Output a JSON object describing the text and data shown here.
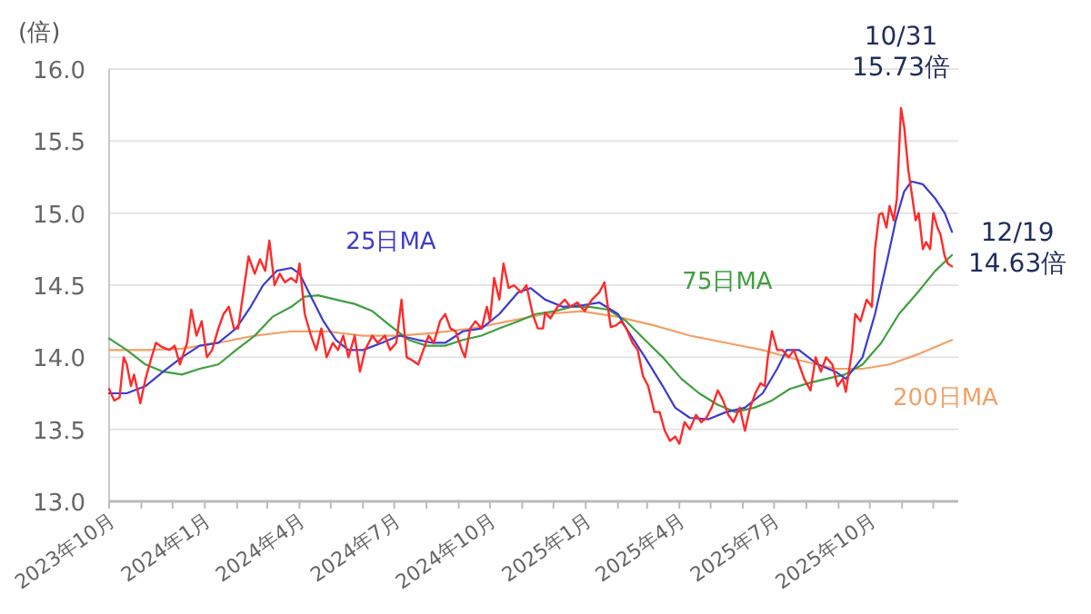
{
  "chart_data": {
    "type": "line",
    "ylabel": "(倍)",
    "xlim": [
      "2023-10-01",
      "2025-12-25"
    ],
    "xticks": [
      {
        "value": "2023-10-01",
        "label": "2023年10月"
      },
      {
        "value": "2023-11-01",
        "label": null
      },
      {
        "value": "2023-12-01",
        "label": null
      },
      {
        "value": "2024-01-01",
        "label": "2024年1月"
      },
      {
        "value": "2024-02-01",
        "label": null
      },
      {
        "value": "2024-03-01",
        "label": null
      },
      {
        "value": "2024-04-01",
        "label": "2024年4月"
      },
      {
        "value": "2024-05-01",
        "label": null
      },
      {
        "value": "2024-06-01",
        "label": null
      },
      {
        "value": "2024-07-01",
        "label": "2024年7月"
      },
      {
        "value": "2024-08-01",
        "label": null
      },
      {
        "value": "2024-09-01",
        "label": null
      },
      {
        "value": "2024-10-01",
        "label": "2024年10月"
      },
      {
        "value": "2024-11-01",
        "label": null
      },
      {
        "value": "2024-12-01",
        "label": null
      },
      {
        "value": "2025-01-01",
        "label": "2025年1月"
      },
      {
        "value": "2025-02-01",
        "label": null
      },
      {
        "value": "2025-03-01",
        "label": null
      },
      {
        "value": "2025-04-01",
        "label": "2025年4月"
      },
      {
        "value": "2025-05-01",
        "label": null
      },
      {
        "value": "2025-06-01",
        "label": null
      },
      {
        "value": "2025-07-01",
        "label": "2025年7月"
      },
      {
        "value": "2025-08-01",
        "label": null
      },
      {
        "value": "2025-09-01",
        "label": null
      },
      {
        "value": "2025-10-01",
        "label": "2025年10月"
      },
      {
        "value": "2025-11-01",
        "label": null
      },
      {
        "value": "2025-12-01",
        "label": null
      }
    ],
    "ylim": [
      13.0,
      16.0
    ],
    "yticks": [
      {
        "value": 13.0,
        "label": "13.0"
      },
      {
        "value": 13.5,
        "label": "13.5"
      },
      {
        "value": 14.0,
        "label": "14.0"
      },
      {
        "value": 14.5,
        "label": "14.5"
      },
      {
        "value": 15.0,
        "label": "15.0"
      },
      {
        "value": 15.5,
        "label": "15.5"
      },
      {
        "value": 16.0,
        "label": "16.0"
      }
    ],
    "grid": "y",
    "legend": false,
    "marker": "none",
    "line_style": "solid",
    "annotations": [
      {
        "text": "10/31\n15.73倍",
        "x": "2025-10-31",
        "y": 15.73
      },
      {
        "text": "12/19\n14.63倍",
        "x": "2025-12-19",
        "y": 14.63
      }
    ],
    "series": [
      {
        "color": "#ff2a2a",
        "x": [
          "2023-10-01",
          "2023-10-06",
          "2023-10-11",
          "2023-10-15",
          "2023-10-18",
          "2023-10-22",
          "2023-10-25",
          "2023-10-31",
          "2023-11-05",
          "2023-11-10",
          "2023-11-15",
          "2023-11-21",
          "2023-11-28",
          "2023-12-03",
          "2023-12-08",
          "2023-12-15",
          "2023-12-19",
          "2023-12-24",
          "2023-12-29",
          "2024-01-03",
          "2024-01-08",
          "2024-01-14",
          "2024-01-19",
          "2024-01-24",
          "2024-01-29",
          "2024-02-02",
          "2024-02-07",
          "2024-02-12",
          "2024-02-18",
          "2024-02-23",
          "2024-02-28",
          "2024-03-03",
          "2024-03-08",
          "2024-03-13",
          "2024-03-18",
          "2024-03-24",
          "2024-03-29",
          "2024-04-01",
          "2024-04-06",
          "2024-04-12",
          "2024-04-17",
          "2024-04-22",
          "2024-04-27",
          "2024-05-03",
          "2024-05-08",
          "2024-05-13",
          "2024-05-18",
          "2024-05-24",
          "2024-05-29",
          "2024-06-03",
          "2024-06-10",
          "2024-06-15",
          "2024-06-22",
          "2024-06-27",
          "2024-07-03",
          "2024-07-08",
          "2024-07-13",
          "2024-07-18",
          "2024-07-24",
          "2024-07-29",
          "2024-08-03",
          "2024-08-08",
          "2024-08-14",
          "2024-08-19",
          "2024-08-24",
          "2024-08-29",
          "2024-09-04",
          "2024-09-07",
          "2024-09-12",
          "2024-09-17",
          "2024-09-23",
          "2024-09-28",
          "2024-10-01",
          "2024-10-05",
          "2024-10-10",
          "2024-10-14",
          "2024-10-19",
          "2024-10-24",
          "2024-10-31",
          "2024-11-05",
          "2024-11-11",
          "2024-11-16",
          "2024-11-21",
          "2024-11-23",
          "2024-11-28",
          "2024-12-05",
          "2024-12-12",
          "2024-12-17",
          "2024-12-24",
          "2024-12-31",
          "2025-01-07",
          "2025-01-14",
          "2025-01-19",
          "2025-01-25",
          "2025-01-30",
          "2025-02-04",
          "2025-02-09",
          "2025-02-15",
          "2025-02-20",
          "2025-02-25",
          "2025-03-02",
          "2025-03-08",
          "2025-03-13",
          "2025-03-18",
          "2025-03-23",
          "2025-03-28",
          "2025-04-01",
          "2025-04-06",
          "2025-04-11",
          "2025-04-17",
          "2025-04-22",
          "2025-04-27",
          "2025-05-02",
          "2025-05-08",
          "2025-05-13",
          "2025-05-18",
          "2025-05-23",
          "2025-05-29",
          "2025-06-03",
          "2025-06-08",
          "2025-06-13",
          "2025-06-18",
          "2025-06-22",
          "2025-06-25",
          "2025-06-29",
          "2025-07-04",
          "2025-07-09",
          "2025-07-15",
          "2025-07-20",
          "2025-07-25",
          "2025-07-30",
          "2025-08-05",
          "2025-08-10",
          "2025-08-15",
          "2025-08-20",
          "2025-08-26",
          "2025-08-31",
          "2025-09-05",
          "2025-09-08",
          "2025-09-14",
          "2025-09-17",
          "2025-09-22",
          "2025-09-28",
          "2025-10-03",
          "2025-10-06",
          "2025-10-10",
          "2025-10-13",
          "2025-10-17",
          "2025-10-20",
          "2025-10-24",
          "2025-10-27",
          "2025-10-31",
          "2025-11-03",
          "2025-11-07",
          "2025-11-10",
          "2025-11-14",
          "2025-11-17",
          "2025-11-21",
          "2025-11-24",
          "2025-11-28",
          "2025-12-01",
          "2025-12-05",
          "2025-12-08",
          "2025-12-12",
          "2025-12-15",
          "2025-12-19"
        ],
        "values": [
          13.78,
          13.7,
          13.72,
          14.0,
          13.95,
          13.8,
          13.88,
          13.68,
          13.85,
          13.98,
          14.1,
          14.07,
          14.05,
          14.08,
          13.95,
          14.1,
          14.33,
          14.15,
          14.25,
          14.0,
          14.05,
          14.2,
          14.3,
          14.35,
          14.2,
          14.2,
          14.45,
          14.7,
          14.58,
          14.68,
          14.6,
          14.81,
          14.5,
          14.58,
          14.52,
          14.55,
          14.52,
          14.65,
          14.3,
          14.15,
          14.05,
          14.2,
          14.0,
          14.1,
          14.05,
          14.15,
          14.0,
          14.15,
          13.9,
          14.05,
          14.15,
          14.1,
          14.15,
          14.05,
          14.1,
          14.4,
          14.0,
          13.98,
          13.95,
          14.05,
          14.15,
          14.1,
          14.25,
          14.3,
          14.2,
          14.18,
          14.05,
          14.0,
          14.2,
          14.25,
          14.2,
          14.35,
          14.25,
          14.55,
          14.4,
          14.65,
          14.48,
          14.5,
          14.45,
          14.5,
          14.3,
          14.2,
          14.2,
          14.31,
          14.27,
          14.35,
          14.4,
          14.35,
          14.38,
          14.32,
          14.4,
          14.45,
          14.52,
          14.21,
          14.22,
          14.25,
          14.2,
          14.1,
          14.05,
          13.87,
          13.8,
          13.62,
          13.62,
          13.49,
          13.42,
          13.45,
          13.4,
          13.55,
          13.5,
          13.6,
          13.55,
          13.58,
          13.65,
          13.77,
          13.7,
          13.6,
          13.55,
          13.65,
          13.49,
          13.65,
          13.75,
          13.82,
          13.8,
          14.0,
          14.18,
          14.05,
          14.05,
          14.0,
          14.05,
          13.95,
          13.85,
          13.77,
          14.0,
          13.9,
          14.0,
          13.95,
          13.8,
          13.85,
          13.76,
          14.05,
          14.3,
          14.25,
          14.4,
          14.35,
          14.75,
          14.99,
          15.0,
          14.9,
          15.05,
          14.95,
          15.1,
          15.73,
          15.6,
          15.3,
          15.15,
          14.95,
          15.0,
          14.75,
          14.8,
          14.75,
          15.0,
          14.9,
          14.85,
          14.7,
          14.65,
          14.63
        ]
      },
      {
        "name": "25日MA",
        "color": "#3b3bd0",
        "x": [
          "2023-10-01",
          "2023-10-18",
          "2023-11-05",
          "2023-11-22",
          "2023-12-10",
          "2023-12-27",
          "2024-01-14",
          "2024-01-31",
          "2024-02-14",
          "2024-02-26",
          "2024-03-10",
          "2024-03-24",
          "2024-04-01",
          "2024-04-10",
          "2024-04-24",
          "2024-05-06",
          "2024-05-18",
          "2024-06-01",
          "2024-06-19",
          "2024-07-06",
          "2024-07-24",
          "2024-08-07",
          "2024-08-19",
          "2024-09-05",
          "2024-09-23",
          "2024-10-10",
          "2024-10-28",
          "2024-11-09",
          "2024-11-23",
          "2024-12-10",
          "2024-12-28",
          "2025-01-14",
          "2025-02-01",
          "2025-02-09",
          "2025-02-27",
          "2025-03-16",
          "2025-03-28",
          "2025-04-11",
          "2025-04-29",
          "2025-05-16",
          "2025-06-03",
          "2025-06-20",
          "2025-07-04",
          "2025-07-13",
          "2025-07-25",
          "2025-08-12",
          "2025-08-29",
          "2025-09-08",
          "2025-09-24",
          "2025-10-06",
          "2025-10-17",
          "2025-10-26",
          "2025-11-03",
          "2025-11-10",
          "2025-11-21",
          "2025-12-03",
          "2025-12-12",
          "2025-12-19"
        ],
        "values": [
          13.75,
          13.75,
          13.8,
          13.9,
          14.0,
          14.08,
          14.1,
          14.2,
          14.35,
          14.5,
          14.6,
          14.62,
          14.58,
          14.45,
          14.25,
          14.12,
          14.05,
          14.05,
          14.1,
          14.15,
          14.12,
          14.1,
          14.1,
          14.18,
          14.2,
          14.3,
          14.45,
          14.48,
          14.4,
          14.35,
          14.36,
          14.38,
          14.3,
          14.2,
          14.0,
          13.8,
          13.65,
          13.58,
          13.57,
          13.62,
          13.65,
          13.75,
          13.92,
          14.05,
          14.05,
          13.95,
          13.9,
          13.85,
          14.0,
          14.3,
          14.65,
          14.95,
          15.15,
          15.22,
          15.2,
          15.1,
          15.0,
          14.87
        ]
      },
      {
        "name": "75日MA",
        "color": "#3f9f3f",
        "x": [
          "2023-10-01",
          "2023-10-18",
          "2023-11-05",
          "2023-11-22",
          "2023-12-10",
          "2023-12-27",
          "2024-01-14",
          "2024-01-31",
          "2024-02-18",
          "2024-03-06",
          "2024-03-24",
          "2024-04-06",
          "2024-04-19",
          "2024-05-06",
          "2024-05-24",
          "2024-06-10",
          "2024-06-27",
          "2024-07-15",
          "2024-08-01",
          "2024-08-19",
          "2024-09-05",
          "2024-09-23",
          "2024-10-10",
          "2024-10-28",
          "2024-11-14",
          "2024-12-02",
          "2024-12-19",
          "2025-01-05",
          "2025-01-23",
          "2025-02-09",
          "2025-02-27",
          "2025-03-16",
          "2025-04-03",
          "2025-04-20",
          "2025-05-08",
          "2025-05-25",
          "2025-06-12",
          "2025-06-29",
          "2025-07-16",
          "2025-08-03",
          "2025-08-20",
          "2025-09-07",
          "2025-09-24",
          "2025-10-12",
          "2025-10-29",
          "2025-11-16",
          "2025-12-03",
          "2025-12-19"
        ],
        "values": [
          14.13,
          14.05,
          13.95,
          13.9,
          13.88,
          13.92,
          13.95,
          14.05,
          14.15,
          14.28,
          14.35,
          14.42,
          14.43,
          14.4,
          14.37,
          14.32,
          14.22,
          14.12,
          14.08,
          14.08,
          14.12,
          14.15,
          14.2,
          14.25,
          14.3,
          14.32,
          14.35,
          14.35,
          14.33,
          14.25,
          14.12,
          14.0,
          13.85,
          13.75,
          13.67,
          13.62,
          13.65,
          13.7,
          13.78,
          13.82,
          13.85,
          13.88,
          13.95,
          14.1,
          14.3,
          14.45,
          14.6,
          14.71
        ]
      },
      {
        "name": "200日MA",
        "color": "#f2a066",
        "x": [
          "2023-10-01",
          "2023-11-05",
          "2023-12-10",
          "2024-01-14",
          "2024-02-18",
          "2024-03-24",
          "2024-04-27",
          "2024-06-01",
          "2024-07-06",
          "2024-08-10",
          "2024-09-14",
          "2024-10-19",
          "2024-11-23",
          "2024-12-28",
          "2025-02-01",
          "2025-03-08",
          "2025-04-11",
          "2025-05-16",
          "2025-06-20",
          "2025-07-25",
          "2025-08-29",
          "2025-09-24",
          "2025-10-20",
          "2025-11-16",
          "2025-12-19"
        ],
        "values": [
          14.05,
          14.05,
          14.06,
          14.1,
          14.15,
          14.18,
          14.18,
          14.15,
          14.15,
          14.17,
          14.2,
          14.25,
          14.3,
          14.32,
          14.28,
          14.22,
          14.15,
          14.1,
          14.05,
          13.98,
          13.92,
          13.92,
          13.95,
          14.02,
          14.12
        ]
      }
    ]
  }
}
